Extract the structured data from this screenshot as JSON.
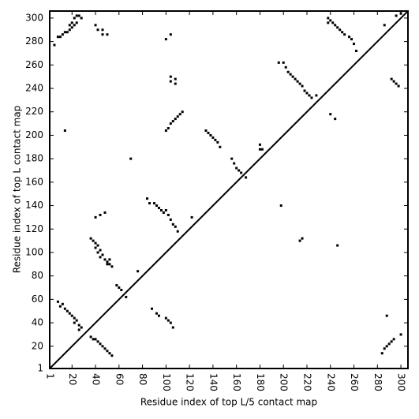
{
  "chart_data": {
    "type": "scatter",
    "xlabel": "Residue index of top L/5 contact map",
    "ylabel": "Residue index of top L contact map",
    "color": "#000000",
    "xlim": [
      1,
      306
    ],
    "ylim": [
      1,
      306
    ],
    "xticks": [
      1,
      20,
      40,
      60,
      80,
      100,
      120,
      140,
      160,
      180,
      200,
      220,
      240,
      260,
      280,
      300
    ],
    "yticks": [
      1,
      20,
      40,
      60,
      80,
      100,
      120,
      140,
      160,
      180,
      200,
      220,
      240,
      260,
      280,
      300
    ],
    "grid": false,
    "x": [
      5,
      8,
      10,
      12,
      14,
      16,
      18,
      18,
      20,
      20,
      22,
      22,
      24,
      24,
      26,
      28,
      40,
      42,
      46,
      46,
      50,
      100,
      104,
      14,
      104,
      104,
      108,
      108,
      100,
      102,
      104,
      106,
      108,
      110,
      112,
      114,
      134,
      136,
      138,
      140,
      142,
      144,
      146,
      156,
      158,
      160,
      162,
      164,
      168,
      180,
      180,
      182,
      70,
      196,
      200,
      202,
      204,
      206,
      208,
      210,
      212,
      214,
      216,
      218,
      220,
      222,
      224,
      228,
      238,
      238,
      240,
      242,
      244,
      246,
      248,
      250,
      252,
      256,
      258,
      260,
      262,
      286,
      292,
      294,
      296,
      298,
      296,
      300,
      240,
      244,
      8,
      10,
      12,
      14,
      16,
      18,
      20,
      22,
      22,
      24,
      26,
      28,
      26,
      36,
      38,
      40,
      42,
      44,
      46,
      48,
      50,
      52,
      54,
      36,
      38,
      40,
      40,
      42,
      42,
      44,
      44,
      46,
      48,
      50,
      50,
      52,
      52,
      54,
      40,
      44,
      48,
      58,
      60,
      62,
      66,
      76,
      84,
      86,
      90,
      92,
      94,
      96,
      98,
      100,
      102,
      104,
      106,
      108,
      110,
      122,
      88,
      92,
      94,
      100,
      102,
      104,
      106,
      198,
      214,
      216,
      246,
      284,
      286,
      288,
      290,
      292,
      294,
      300,
      288
    ],
    "values": [
      277,
      284,
      284,
      286,
      288,
      288,
      290,
      294,
      292,
      296,
      294,
      300,
      296,
      302,
      302,
      300,
      294,
      290,
      290,
      286,
      286,
      282,
      286,
      204,
      250,
      246,
      248,
      244,
      204,
      206,
      210,
      212,
      214,
      216,
      218,
      220,
      204,
      202,
      200,
      198,
      196,
      194,
      190,
      180,
      176,
      172,
      170,
      168,
      164,
      192,
      188,
      188,
      180,
      262,
      262,
      258,
      254,
      252,
      250,
      248,
      246,
      244,
      242,
      238,
      236,
      234,
      232,
      234,
      300,
      296,
      298,
      296,
      294,
      292,
      290,
      288,
      286,
      284,
      282,
      278,
      272,
      294,
      248,
      246,
      244,
      242,
      302,
      304,
      218,
      214,
      58,
      54,
      56,
      52,
      50,
      48,
      46,
      44,
      40,
      42,
      38,
      36,
      34,
      28,
      26,
      26,
      24,
      22,
      20,
      18,
      16,
      14,
      12,
      112,
      110,
      108,
      104,
      106,
      100,
      102,
      96,
      98,
      94,
      92,
      90,
      94,
      90,
      88,
      130,
      132,
      134,
      72,
      70,
      68,
      62,
      84,
      146,
      142,
      142,
      140,
      138,
      136,
      134,
      136,
      132,
      128,
      124,
      122,
      118,
      130,
      52,
      48,
      46,
      44,
      42,
      40,
      36,
      140,
      110,
      112,
      106,
      14,
      18,
      20,
      22,
      24,
      26,
      30,
      46
    ]
  }
}
